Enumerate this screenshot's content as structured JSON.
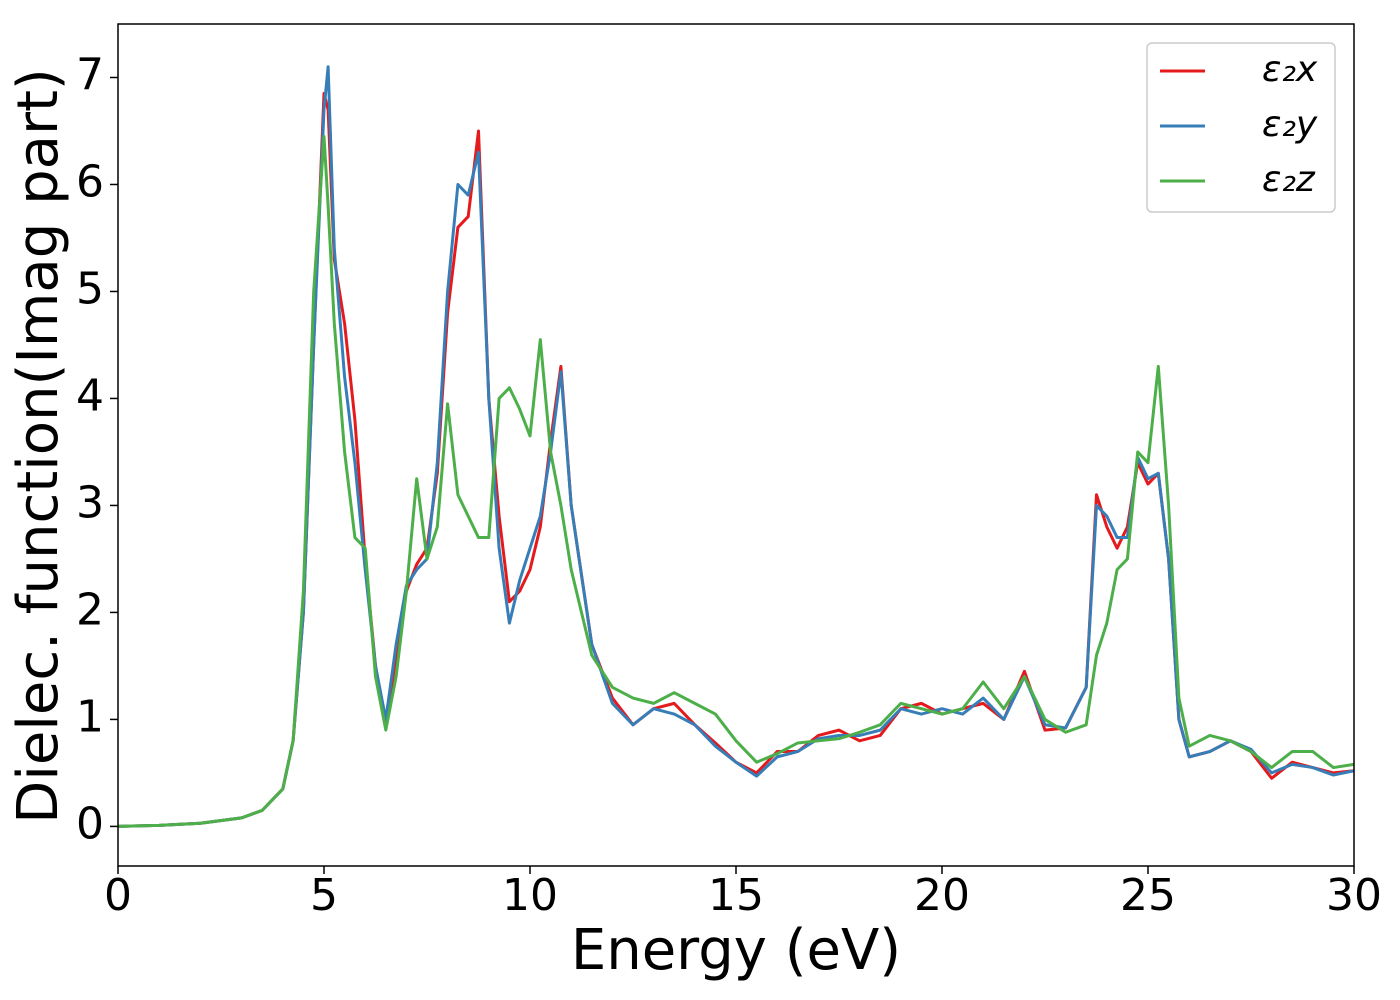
{
  "chart_data": {
    "type": "line",
    "xlabel": "Energy (eV)",
    "ylabel": "Dielec. function(Imag part)",
    "x": [
      0,
      1,
      2,
      3,
      3.5,
      4,
      4.25,
      4.5,
      4.75,
      5,
      5.1,
      5.25,
      5.5,
      5.75,
      6,
      6.25,
      6.5,
      6.75,
      7,
      7.25,
      7.5,
      7.75,
      8,
      8.25,
      8.5,
      8.75,
      9,
      9.25,
      9.5,
      9.75,
      10,
      10.25,
      10.5,
      10.75,
      11,
      11.5,
      12,
      12.5,
      13,
      13.5,
      14,
      14.5,
      15,
      15.5,
      16,
      16.5,
      17,
      17.5,
      18,
      18.5,
      19,
      19.5,
      20,
      20.5,
      21,
      21.5,
      22,
      22.5,
      23,
      23.5,
      23.75,
      24,
      24.25,
      24.5,
      24.75,
      25,
      25.25,
      25.5,
      25.75,
      26,
      26.5,
      27,
      27.5,
      28,
      28.5,
      29,
      29.5,
      30
    ],
    "series": [
      {
        "name": "ε₂x",
        "color": "#e41a1c",
        "values": [
          0,
          0.01,
          0.03,
          0.08,
          0.15,
          0.35,
          0.8,
          2.0,
          4.5,
          6.85,
          6.7,
          5.3,
          4.7,
          3.8,
          2.5,
          1.5,
          0.92,
          1.6,
          2.2,
          2.45,
          2.6,
          3.3,
          4.8,
          5.6,
          5.7,
          6.5,
          4.0,
          2.9,
          2.1,
          2.2,
          2.4,
          2.8,
          3.6,
          4.3,
          3.0,
          1.7,
          1.2,
          0.95,
          1.1,
          1.15,
          0.95,
          0.78,
          0.6,
          0.5,
          0.7,
          0.7,
          0.85,
          0.9,
          0.8,
          0.85,
          1.1,
          1.15,
          1.05,
          1.1,
          1.15,
          1.0,
          1.45,
          0.9,
          0.92,
          1.3,
          3.1,
          2.8,
          2.6,
          2.8,
          3.4,
          3.2,
          3.3,
          2.5,
          1.0,
          0.65,
          0.7,
          0.8,
          0.7,
          0.45,
          0.6,
          0.55,
          0.5,
          0.52
        ]
      },
      {
        "name": "ε₂y",
        "color": "#377eb8",
        "values": [
          0,
          0.01,
          0.03,
          0.08,
          0.15,
          0.35,
          0.8,
          2.0,
          4.5,
          6.7,
          7.1,
          5.4,
          4.2,
          3.4,
          2.4,
          1.5,
          1.0,
          1.7,
          2.25,
          2.4,
          2.5,
          3.4,
          5.0,
          6.0,
          5.9,
          6.3,
          4.0,
          2.6,
          1.9,
          2.3,
          2.6,
          2.9,
          3.5,
          4.25,
          3.0,
          1.7,
          1.15,
          0.95,
          1.1,
          1.05,
          0.95,
          0.75,
          0.6,
          0.47,
          0.65,
          0.7,
          0.82,
          0.85,
          0.85,
          0.9,
          1.1,
          1.05,
          1.1,
          1.05,
          1.2,
          1.0,
          1.4,
          0.95,
          0.92,
          1.3,
          3.0,
          2.9,
          2.7,
          2.7,
          3.45,
          3.25,
          3.3,
          2.5,
          1.0,
          0.65,
          0.7,
          0.8,
          0.72,
          0.5,
          0.58,
          0.55,
          0.48,
          0.52
        ]
      },
      {
        "name": "ε₂z",
        "color": "#4daf4a",
        "values": [
          0,
          0.01,
          0.03,
          0.08,
          0.15,
          0.35,
          0.8,
          2.2,
          5.0,
          6.45,
          5.8,
          4.7,
          3.5,
          2.7,
          2.6,
          1.4,
          0.9,
          1.4,
          2.2,
          3.25,
          2.5,
          2.8,
          3.95,
          3.1,
          2.9,
          2.7,
          2.7,
          4.0,
          4.1,
          3.9,
          3.65,
          4.55,
          3.5,
          3.0,
          2.4,
          1.6,
          1.3,
          1.2,
          1.15,
          1.25,
          1.15,
          1.05,
          0.8,
          0.6,
          0.68,
          0.78,
          0.8,
          0.82,
          0.88,
          0.95,
          1.15,
          1.1,
          1.05,
          1.1,
          1.35,
          1.1,
          1.4,
          1.0,
          0.88,
          0.95,
          1.6,
          1.9,
          2.4,
          2.5,
          3.5,
          3.4,
          4.3,
          3.0,
          1.2,
          0.75,
          0.85,
          0.8,
          0.7,
          0.55,
          0.7,
          0.7,
          0.55,
          0.58
        ]
      }
    ],
    "xlim": [
      0,
      30
    ],
    "xticks": [
      0,
      5,
      10,
      15,
      20,
      25,
      30
    ],
    "ylim": [
      -0.37,
      7.5
    ],
    "yticks": [
      0,
      1,
      2,
      3,
      4,
      5,
      6,
      7
    ],
    "legend": "upper right",
    "grid": false
  }
}
